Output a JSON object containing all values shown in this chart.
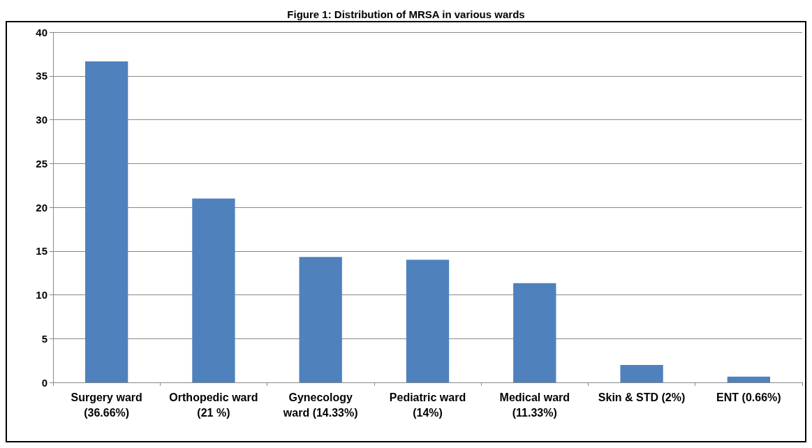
{
  "chart_data": {
    "type": "bar",
    "title": "Figure 1: Distribution of MRSA in various wards",
    "categories": [
      "Surgery ward\n(36.66%)",
      "Orthopedic ward\n(21 %)",
      "Gynecology\nward (14.33%)",
      "Pediatric ward\n(14%)",
      "Medical ward\n(11.33%)",
      "Skin & STD (2%)",
      "ENT (0.66%)"
    ],
    "values": [
      36.66,
      21,
      14.33,
      14,
      11.33,
      2,
      0.66
    ],
    "color": "#4f81bd",
    "ylim": [
      0,
      40
    ],
    "yticks": [
      0,
      5,
      10,
      15,
      20,
      25,
      30,
      35,
      40
    ],
    "grid": "y"
  }
}
